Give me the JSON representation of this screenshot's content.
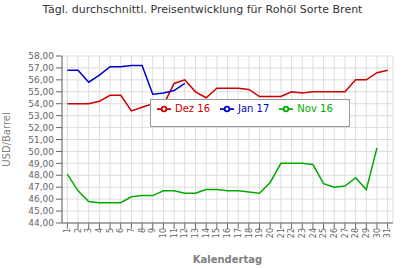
{
  "chart_data": {
    "type": "line",
    "title": "Tägl. durchschnittl. Preisentwicklung für Rohöl Sorte Brent",
    "xlabel": "Kalendertag",
    "ylabel": "USD/Barrel",
    "x": [
      1,
      2,
      3,
      4,
      5,
      6,
      7,
      8,
      9,
      10,
      11,
      12,
      13,
      14,
      15,
      16,
      17,
      18,
      19,
      20,
      21,
      22,
      23,
      24,
      25,
      26,
      27,
      28,
      29,
      30,
      31
    ],
    "series": [
      {
        "name": "Nov 16",
        "color": "#00AA00",
        "values": [
          48.1,
          46.7,
          45.8,
          45.7,
          45.7,
          45.7,
          46.2,
          46.3,
          46.3,
          46.7,
          46.7,
          46.5,
          46.5,
          46.8,
          46.8,
          46.7,
          46.7,
          46.6,
          46.5,
          47.4,
          49.0,
          49.0,
          49.0,
          48.9,
          47.3,
          47.0,
          47.1,
          47.8,
          46.8,
          50.3,
          null
        ]
      },
      {
        "name": "Dez 16",
        "color": "#CC0000",
        "values": [
          54.0,
          54.0,
          54.0,
          54.2,
          54.7,
          54.7,
          53.4,
          53.7,
          54.0,
          53.9,
          55.7,
          56.0,
          55.0,
          54.5,
          55.3,
          55.3,
          55.3,
          55.2,
          54.6,
          54.6,
          54.6,
          55.0,
          54.9,
          55.0,
          55.0,
          55.0,
          55.0,
          56.0,
          56.0,
          56.6,
          56.8
        ]
      },
      {
        "name": "Jan 17",
        "color": "#0000CC",
        "values": [
          56.8,
          56.8,
          55.8,
          56.4,
          57.1,
          57.1,
          57.2,
          57.2,
          54.8,
          54.9,
          55.1,
          55.7,
          null,
          null,
          null,
          null,
          null,
          null,
          null,
          null,
          null,
          null,
          null,
          null,
          null,
          null,
          null,
          null,
          null,
          null,
          null
        ]
      }
    ],
    "xlim": [
      0.5,
      31.5
    ],
    "xticks": [
      1,
      2,
      3,
      4,
      5,
      6,
      7,
      8,
      9,
      10,
      11,
      12,
      13,
      14,
      15,
      16,
      17,
      18,
      19,
      20,
      21,
      22,
      23,
      24,
      25,
      26,
      27,
      28,
      29,
      30,
      31
    ],
    "ylim": [
      44.0,
      58.0
    ],
    "yticks": [
      {
        "value": 44.0,
        "label": "44,00"
      },
      {
        "value": 45.0,
        "label": "45,00"
      },
      {
        "value": 46.0,
        "label": "46,00"
      },
      {
        "value": 47.0,
        "label": "47,00"
      },
      {
        "value": 48.0,
        "label": "48,00"
      },
      {
        "value": 49.0,
        "label": "49,00"
      },
      {
        "value": 50.0,
        "label": "50,00"
      },
      {
        "value": 51.0,
        "label": "51,00"
      },
      {
        "value": 52.0,
        "label": "52,00"
      },
      {
        "value": 53.0,
        "label": "53,00"
      },
      {
        "value": 54.0,
        "label": "54,00"
      },
      {
        "value": 55.0,
        "label": "55,00"
      },
      {
        "value": 56.0,
        "label": "56,00"
      },
      {
        "value": 57.0,
        "label": "57,00"
      },
      {
        "value": 58.0,
        "label": "58,00"
      }
    ],
    "grid": true,
    "legend": "center"
  }
}
